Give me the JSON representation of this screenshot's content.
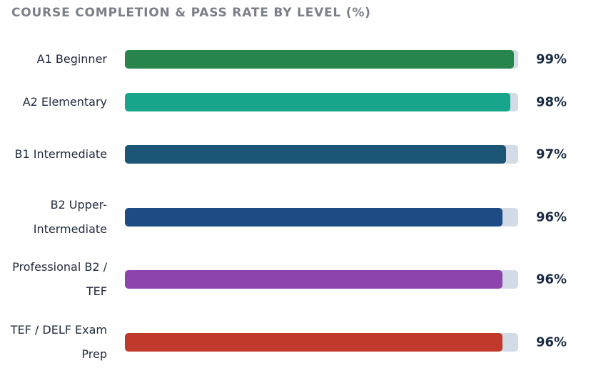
{
  "chart_data": {
    "type": "bar",
    "orientation": "horizontal",
    "title": "COURSE COMPLETION & PASS RATE BY LEVEL (%)",
    "categories": [
      "A1 Beginner",
      "A2 Elementary",
      "B1 Intermediate",
      "B2 Upper-Intermediate",
      "Professional B2 / TEF",
      "TEF / DELF Exam Prep"
    ],
    "values": [
      99,
      98,
      97,
      96,
      96,
      96
    ],
    "value_labels": [
      "99%",
      "98%",
      "97%",
      "96%",
      "96%",
      "96%"
    ],
    "colors": [
      "#27854c",
      "#17a58c",
      "#1d5577",
      "#1f4b85",
      "#8e44ad",
      "#c0392b"
    ],
    "track_color": "#d3dce6",
    "xlim": [
      0,
      100
    ]
  }
}
